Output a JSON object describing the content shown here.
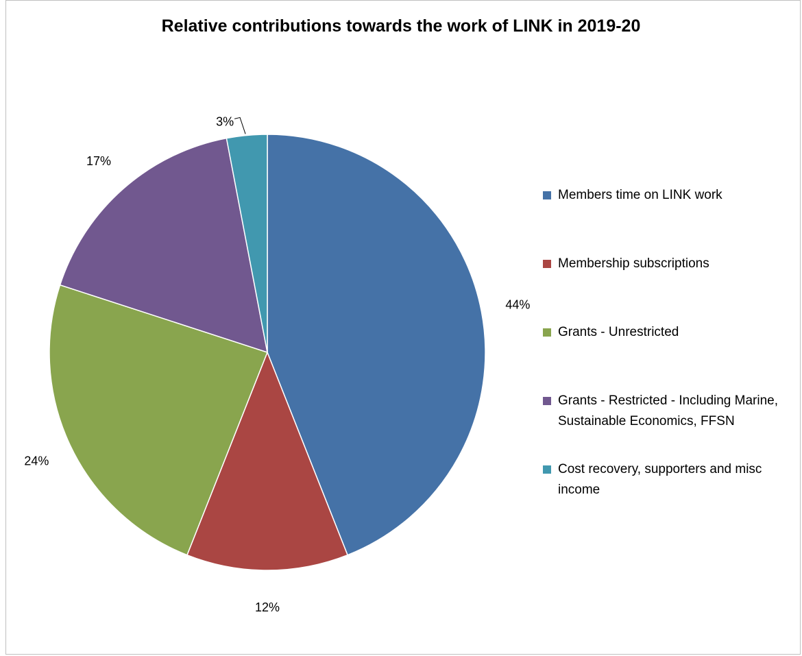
{
  "chart_data": {
    "type": "pie",
    "title": "Relative contributions towards the work of LINK in 2019-20",
    "start_angle_deg": 0,
    "direction": "clockwise",
    "legend_position": "right",
    "slices": [
      {
        "label": "Members time on LINK work",
        "value": 44,
        "data_label": "44%",
        "color": "#4572A7"
      },
      {
        "label": "Membership subscriptions",
        "value": 12,
        "data_label": "12%",
        "color": "#AA4643"
      },
      {
        "label": "Grants - Unrestricted",
        "value": 24,
        "data_label": "24%",
        "color": "#89A54E"
      },
      {
        "label": "Grants - Restricted - Including Marine, Sustainable Economics, FFSN",
        "value": 17,
        "data_label": "17%",
        "color": "#71588F"
      },
      {
        "label": "Cost recovery, supporters and misc income",
        "value": 3,
        "data_label": "3%",
        "color": "#4198AF"
      }
    ]
  }
}
